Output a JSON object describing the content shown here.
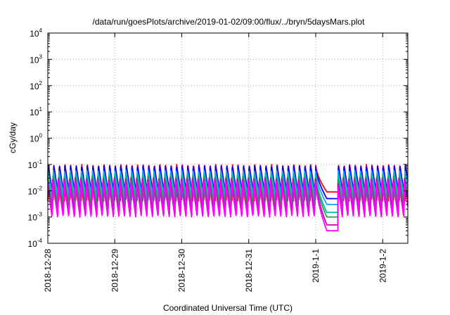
{
  "chart_data": {
    "type": "line",
    "title": "/data/run/goesPlots/archive/2019-01-02/09:00/flux/../bryn/5daysMars.plot",
    "xlabel": "Coordinated Universal Time (UTC)",
    "ylabel": "cGy/day",
    "yscale": "log",
    "ylim": [
      0.0001,
      10000
    ],
    "xlim": [
      "2018-12-28 00:00",
      "2019-01-02 09:00"
    ],
    "grid": true,
    "legend": "none",
    "x_ticks": [
      "2018-12-28",
      "2018-12-29",
      "2018-12-30",
      "2018-12-31",
      "2019-1-1",
      "2019-1-2"
    ],
    "y_ticks": [
      {
        "base": "10",
        "exp": "-4"
      },
      {
        "base": "10",
        "exp": "-3"
      },
      {
        "base": "10",
        "exp": "-2"
      },
      {
        "base": "10",
        "exp": "-1"
      },
      {
        "base": "10",
        "exp": "0"
      },
      {
        "base": "10",
        "exp": "1"
      },
      {
        "base": "10",
        "exp": "2"
      },
      {
        "base": "10",
        "exp": "3"
      },
      {
        "base": "10",
        "exp": "4"
      }
    ],
    "series": [
      {
        "color": "#ff0000",
        "peak": 0.1,
        "trough": 0.004,
        "dip_trough": 0.009
      },
      {
        "color": "#0000ff",
        "peak": 0.09,
        "trough": 0.006,
        "dip_trough": 0.005
      },
      {
        "color": "#1f9fff",
        "peak": 0.06,
        "trough": 0.005,
        "dip_trough": 0.003
      },
      {
        "color": "#00c0a0",
        "peak": 0.045,
        "trough": 0.003,
        "dip_trough": 0.0015
      },
      {
        "color": "#20a040",
        "peak": 0.035,
        "trough": 0.002,
        "dip_trough": 0.001
      },
      {
        "color": "#c000c0",
        "peak": 0.03,
        "trough": 0.0012,
        "dip_trough": 0.0005
      },
      {
        "color": "#ff00ff",
        "peak": 0.025,
        "trough": 0.001,
        "dip_trough": 0.0003
      }
    ],
    "event": {
      "start": "2019-01-01 00:00",
      "trough_time": "2019-01-01 04:00",
      "recovery": "2019-01-01 08:00"
    }
  }
}
